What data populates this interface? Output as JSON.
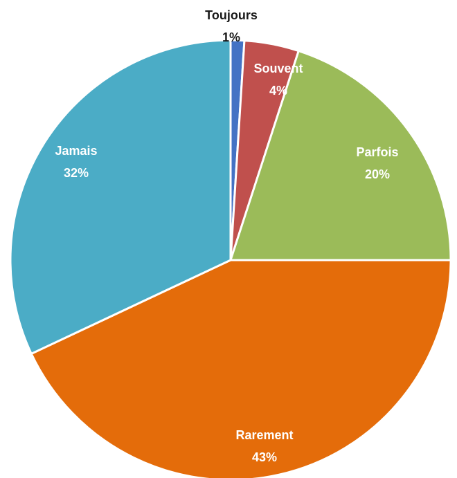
{
  "chart_data": {
    "type": "pie",
    "slices": [
      {
        "label": "Toujours",
        "value": 1,
        "percent_label": "1%",
        "color": "#4472C4"
      },
      {
        "label": "Souvent",
        "value": 4,
        "percent_label": "4%",
        "color": "#C0504D"
      },
      {
        "label": "Parfois",
        "value": 20,
        "percent_label": "20%",
        "color": "#9BBB59"
      },
      {
        "label": "Rarement",
        "value": 43,
        "percent_label": "43%",
        "color": "#E46C0A"
      },
      {
        "label": "Jamais",
        "value": 32,
        "percent_label": "32%",
        "color": "#4BACC6"
      }
    ]
  }
}
